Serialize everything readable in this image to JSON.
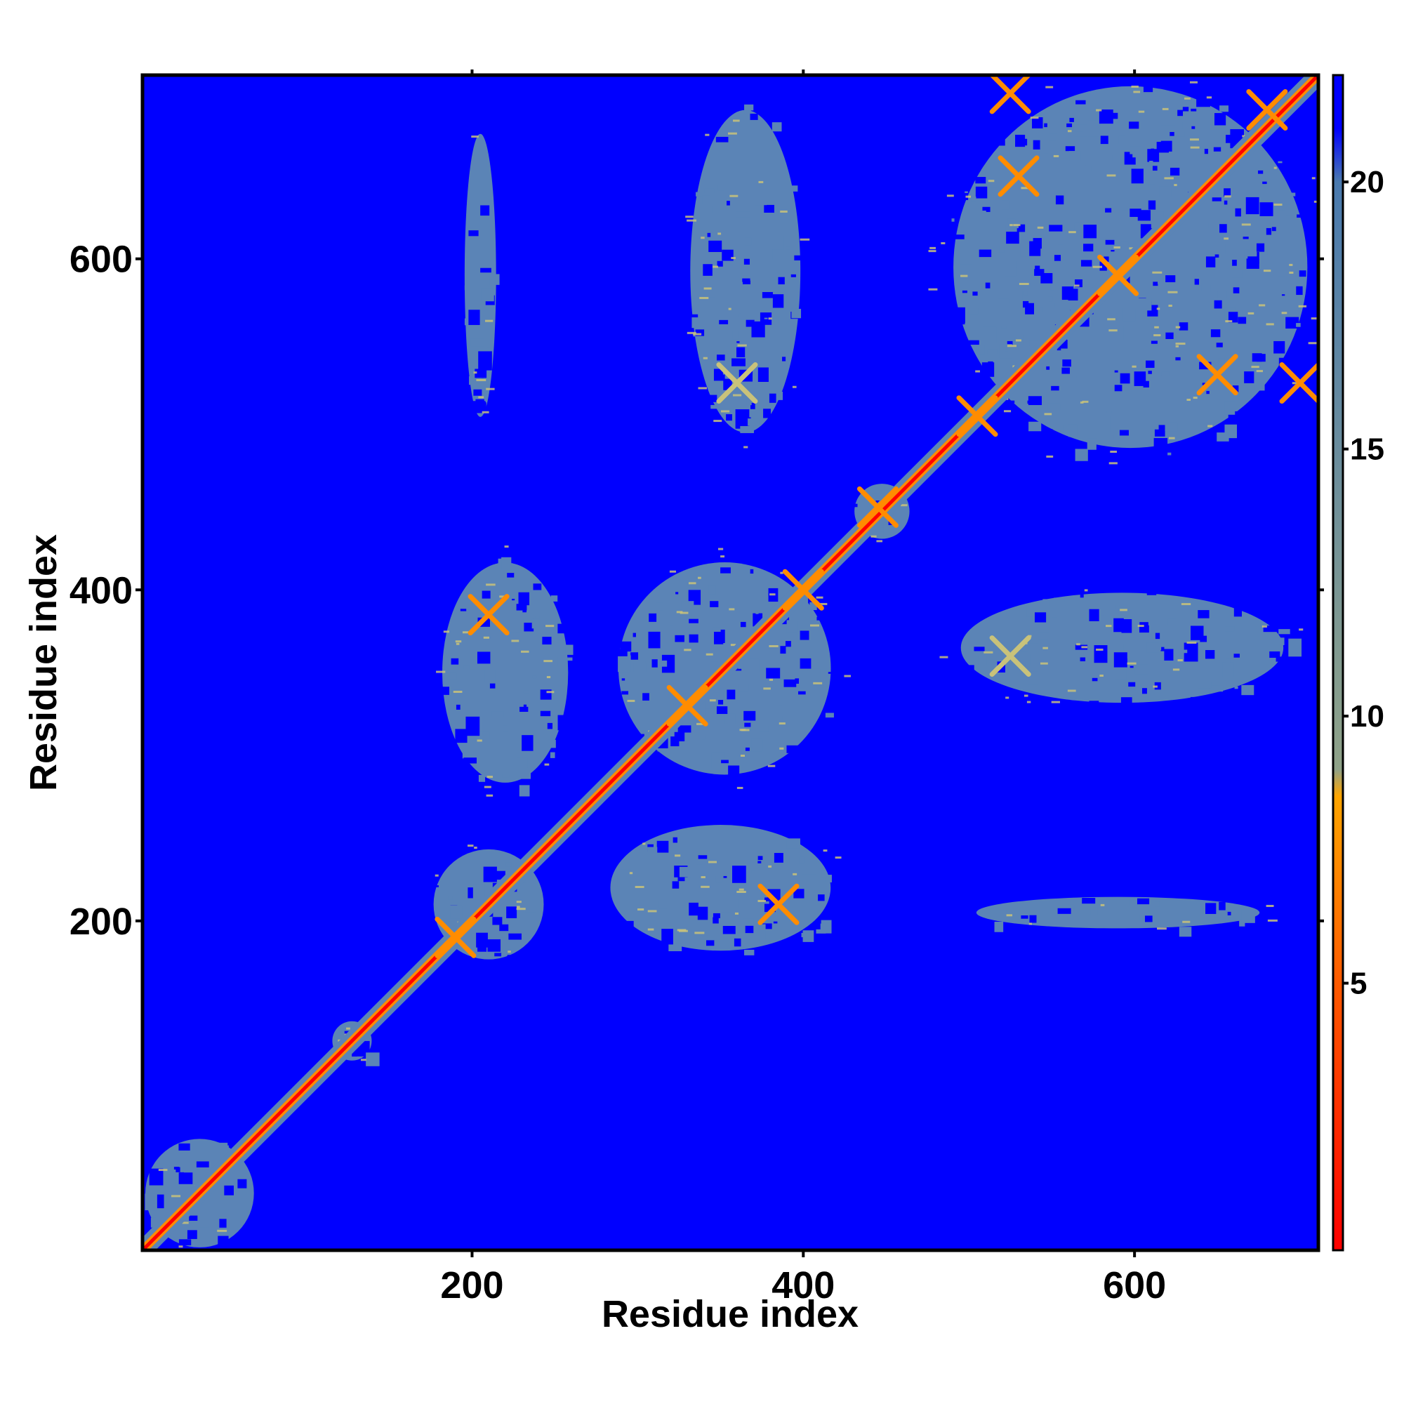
{
  "chart_data": {
    "type": "heatmap",
    "title": "",
    "xlabel": "Residue index",
    "ylabel": "Residue index",
    "xlim": [
      1,
      711
    ],
    "ylim": [
      1,
      711
    ],
    "x_ticks": [
      200,
      400,
      600
    ],
    "y_ticks": [
      200,
      400,
      600
    ],
    "colorbar": {
      "range": [
        0,
        22
      ],
      "ticks": [
        5,
        10,
        15,
        20
      ],
      "stops": [
        {
          "value": 0,
          "color": "#ff0000"
        },
        {
          "value": 5,
          "color": "#ff5a00"
        },
        {
          "value": 8.5,
          "color": "#ffa500"
        },
        {
          "value": 9,
          "color": "#8fa288"
        },
        {
          "value": 20,
          "color": "#4a7aae"
        },
        {
          "value": 21,
          "color": "#0000ff"
        }
      ]
    },
    "colors": {
      "far": "#0000ff",
      "mid": "#5b84b6",
      "near": "#c9c27a",
      "close": "#ff8c00",
      "diagonal": "#ff0000"
    },
    "diagonal_band": true,
    "contact_blocks": [
      {
        "x": [
          1,
          70
        ],
        "y": [
          1,
          70
        ],
        "level": "mid"
      },
      {
        "x": [
          115,
          140
        ],
        "y": [
          115,
          140
        ],
        "level": "mid"
      },
      {
        "x": [
          175,
          245
        ],
        "y": [
          175,
          245
        ],
        "level": "mid"
      },
      {
        "x": [
          180,
          260
        ],
        "y": [
          280,
          420
        ],
        "level": "mid"
      },
      {
        "x": [
          280,
          420
        ],
        "y": [
          180,
          260
        ],
        "level": "mid"
      },
      {
        "x": [
          285,
          420
        ],
        "y": [
          285,
          420
        ],
        "level": "mid"
      },
      {
        "x": [
          430,
          465
        ],
        "y": [
          430,
          465
        ],
        "level": "mid"
      },
      {
        "x": [
          330,
          400
        ],
        "y": [
          490,
          695
        ],
        "level": "mid"
      },
      {
        "x": [
          490,
          695
        ],
        "y": [
          330,
          400
        ],
        "level": "mid"
      },
      {
        "x": [
          485,
          710
        ],
        "y": [
          480,
          710
        ],
        "level": "mid"
      },
      {
        "x": [
          195,
          215
        ],
        "y": [
          500,
          680
        ],
        "level": "mid"
      },
      {
        "x": [
          500,
          680
        ],
        "y": [
          195,
          215
        ],
        "level": "mid"
      }
    ],
    "contact_hotspots": [
      {
        "x": 190,
        "y": 190,
        "level": "close"
      },
      {
        "x": 210,
        "y": 385,
        "level": "close"
      },
      {
        "x": 385,
        "y": 210,
        "level": "close"
      },
      {
        "x": 330,
        "y": 330,
        "level": "close"
      },
      {
        "x": 400,
        "y": 400,
        "level": "close"
      },
      {
        "x": 445,
        "y": 450,
        "level": "close"
      },
      {
        "x": 505,
        "y": 505,
        "level": "close"
      },
      {
        "x": 525,
        "y": 700,
        "level": "close"
      },
      {
        "x": 700,
        "y": 525,
        "level": "close"
      },
      {
        "x": 590,
        "y": 590,
        "level": "close"
      },
      {
        "x": 680,
        "y": 690,
        "level": "close"
      },
      {
        "x": 650,
        "y": 530,
        "level": "close"
      },
      {
        "x": 530,
        "y": 650,
        "level": "close"
      },
      {
        "x": 360,
        "y": 525,
        "level": "near"
      },
      {
        "x": 525,
        "y": 360,
        "level": "near"
      }
    ]
  }
}
